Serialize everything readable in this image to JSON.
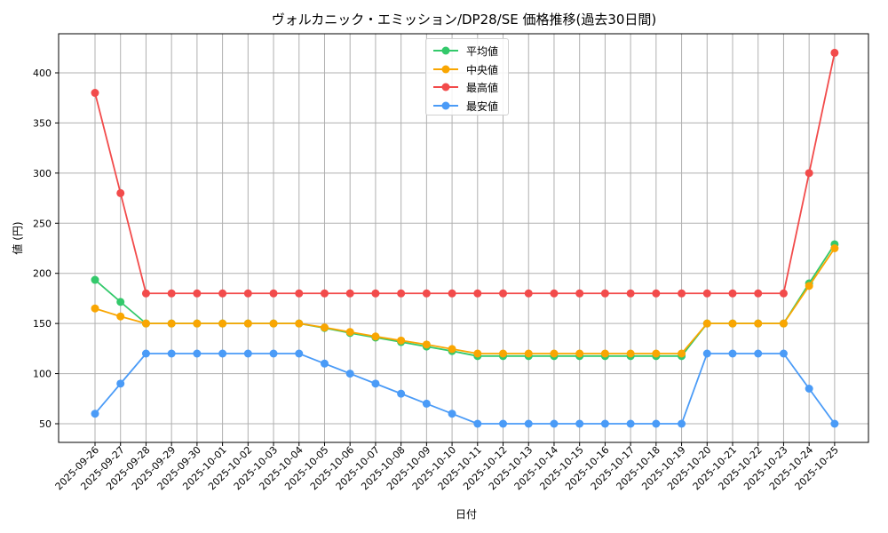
{
  "chart_data": {
    "type": "line",
    "title": "ヴォルカニック・エミッション/DP28/SE 価格推移(過去30日間)",
    "xlabel": "日付",
    "ylabel": "値 (円)",
    "ylim": [
      32,
      440
    ],
    "yticks": [
      50,
      100,
      150,
      200,
      250,
      300,
      350,
      400
    ],
    "grid": true,
    "legend_position": "upper center",
    "x": [
      "2025-09-26",
      "2025-09-27",
      "2025-09-28",
      "2025-09-29",
      "2025-09-30",
      "2025-10-01",
      "2025-10-02",
      "2025-10-03",
      "2025-10-04",
      "2025-10-05",
      "2025-10-06",
      "2025-10-07",
      "2025-10-08",
      "2025-10-09",
      "2025-10-10",
      "2025-10-11",
      "2025-10-12",
      "2025-10-13",
      "2025-10-14",
      "2025-10-15",
      "2025-10-16",
      "2025-10-17",
      "2025-10-18",
      "2025-10-19",
      "2025-10-20",
      "2025-10-21",
      "2025-10-22",
      "2025-10-23",
      "2025-10-24",
      "2025-10-25"
    ],
    "series": [
      {
        "name": "平均値",
        "color": "#33c96b",
        "values": [
          193.5,
          171.5,
          150,
          150,
          150,
          150,
          150,
          150,
          150,
          145.5,
          140.5,
          136,
          131.5,
          127,
          122.5,
          117.5,
          117.5,
          117.5,
          117.5,
          117.5,
          117.5,
          117.5,
          117.5,
          117.5,
          150,
          150,
          150,
          150,
          190,
          229
        ]
      },
      {
        "name": "中央値",
        "color": "#f9a602",
        "values": [
          165,
          157,
          150,
          150,
          150,
          150,
          150,
          150,
          150,
          146,
          141.5,
          137,
          133,
          129,
          124.5,
          120,
          120,
          120,
          120,
          120,
          120,
          120,
          120,
          120,
          150,
          150,
          150,
          150,
          187.5,
          225
        ]
      },
      {
        "name": "最高値",
        "color": "#f24b4b",
        "values": [
          380,
          280,
          180,
          180,
          180,
          180,
          180,
          180,
          180,
          180,
          180,
          180,
          180,
          180,
          180,
          180,
          180,
          180,
          180,
          180,
          180,
          180,
          180,
          180,
          180,
          180,
          180,
          180,
          300,
          420
        ]
      },
      {
        "name": "最安値",
        "color": "#4a9bf7",
        "values": [
          60,
          90,
          120,
          120,
          120,
          120,
          120,
          120,
          120,
          110,
          100,
          90,
          80,
          70,
          60,
          50,
          50,
          50,
          50,
          50,
          50,
          50,
          50,
          50,
          120,
          120,
          120,
          120,
          85,
          50
        ]
      }
    ]
  }
}
